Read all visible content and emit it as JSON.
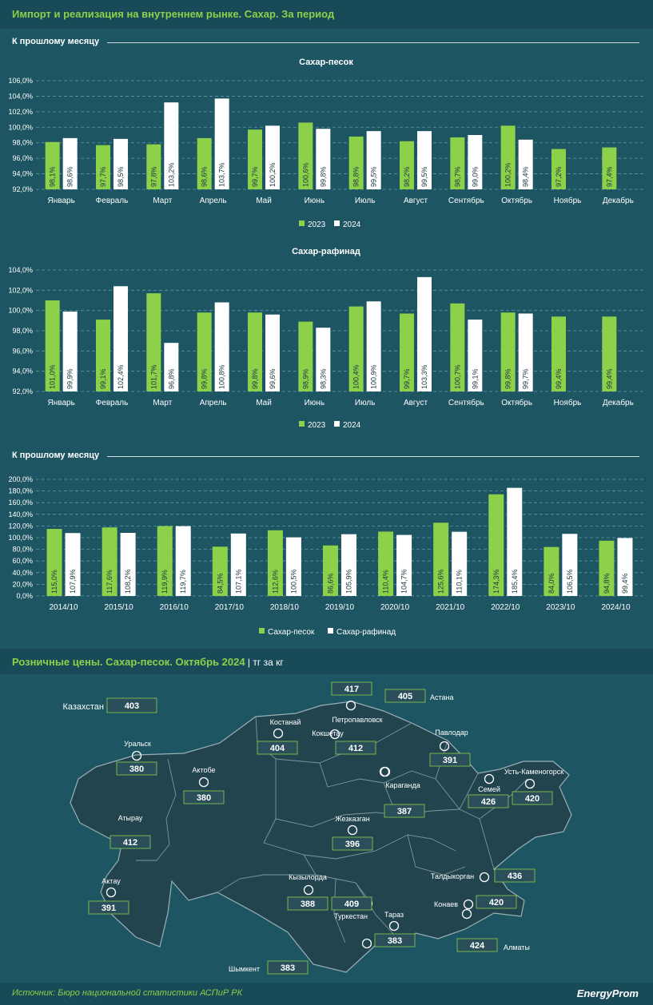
{
  "title": "Импорт и реализация на внутреннем рынке. Сахар. За период",
  "section1": "К прошлому месяцу",
  "section2": "К прошлому месяцу",
  "map_title": "Розничные цены. Сахар-песок. Октябрь 2024",
  "map_sep": " | ",
  "map_unit": "тг за кг",
  "source": "Источник: Бюро национальной статистики АСПиР РК",
  "logo": "EnergyProm",
  "colors": {
    "green": "#8dd04a",
    "white": "#ffffff",
    "background": "#1d5563",
    "map_land": "#22444f"
  },
  "chart_data": [
    {
      "type": "bar",
      "title": "Сахар-песок",
      "categories": [
        "Январь",
        "Февраль",
        "Март",
        "Апрель",
        "Май",
        "Июнь",
        "Июль",
        "Август",
        "Сентябрь",
        "Октябрь",
        "Ноябрь",
        "Декабрь"
      ],
      "series": [
        {
          "name": "2023",
          "values": [
            98.1,
            97.7,
            97.8,
            98.6,
            99.7,
            100.6,
            98.8,
            98.2,
            98.7,
            100.2,
            97.2,
            97.4
          ],
          "labels": [
            "98,1%",
            "97,7%",
            "97,8%",
            "98,6%",
            "99,7%",
            "100,6%",
            "98,8%",
            "98,2%",
            "98,7%",
            "100,2%",
            "97,2%",
            "97,4%"
          ]
        },
        {
          "name": "2024",
          "values": [
            98.6,
            98.5,
            103.2,
            103.7,
            100.2,
            99.8,
            99.5,
            99.5,
            99.0,
            98.4,
            null,
            null
          ],
          "labels": [
            "98,6%",
            "98,5%",
            "103,2%",
            "103,7%",
            "100,2%",
            "99,8%",
            "99,5%",
            "99,5%",
            "99,0%",
            "98,4%",
            "",
            ""
          ]
        }
      ],
      "ylim": [
        92,
        106
      ],
      "yticks": [
        "92,0%",
        "94,0%",
        "96,0%",
        "98,0%",
        "100,0%",
        "102,0%",
        "104,0%",
        "106,0%"
      ],
      "grid": true,
      "legend": "bottom"
    },
    {
      "type": "bar",
      "title": "Сахар-рафинад",
      "categories": [
        "Январь",
        "Февраль",
        "Март",
        "Апрель",
        "Май",
        "Июнь",
        "Июль",
        "Август",
        "Сентябрь",
        "Октябрь",
        "Ноябрь",
        "Декабрь"
      ],
      "series": [
        {
          "name": "2023",
          "values": [
            101.0,
            99.1,
            101.7,
            99.8,
            99.8,
            98.9,
            100.4,
            99.7,
            100.7,
            99.8,
            99.4,
            99.4
          ],
          "labels": [
            "101,0%",
            "99,1%",
            "101,7%",
            "99,8%",
            "99,8%",
            "98,9%",
            "100,4%",
            "99,7%",
            "100,7%",
            "99,8%",
            "99,4%",
            "99,4%"
          ]
        },
        {
          "name": "2024",
          "values": [
            99.9,
            102.4,
            96.8,
            100.8,
            99.6,
            98.3,
            100.9,
            103.3,
            99.1,
            99.7,
            null,
            null
          ],
          "labels": [
            "99,9%",
            "102,4%",
            "96,8%",
            "100,8%",
            "99,6%",
            "98,3%",
            "100,9%",
            "103,3%",
            "99,1%",
            "99,7%",
            "",
            ""
          ]
        }
      ],
      "ylim": [
        92,
        104
      ],
      "yticks": [
        "92,0%",
        "94,0%",
        "96,0%",
        "98,0%",
        "100,0%",
        "102,0%",
        "104,0%"
      ],
      "grid": true,
      "legend": "bottom"
    },
    {
      "type": "bar",
      "title": "",
      "categories": [
        "2014/10",
        "2015/10",
        "2016/10",
        "2017/10",
        "2018/10",
        "2019/10",
        "2020/10",
        "2021/10",
        "2022/10",
        "2023/10",
        "2024/10"
      ],
      "series": [
        {
          "name": "Сахар-песок",
          "values": [
            115.0,
            117.6,
            119.9,
            84.5,
            112.6,
            86.6,
            110.4,
            125.6,
            174.3,
            84.0,
            94.8
          ],
          "labels": [
            "115,0%",
            "117,6%",
            "119,9%",
            "84,5%",
            "112,6%",
            "86,6%",
            "110,4%",
            "125,6%",
            "174,3%",
            "84,0%",
            "94,8%"
          ]
        },
        {
          "name": "Сахар-рафинад",
          "values": [
            107.9,
            108.2,
            119.7,
            107.1,
            100.5,
            105.9,
            104.7,
            110.1,
            185.4,
            106.5,
            99.4
          ],
          "labels": [
            "107,9%",
            "108,2%",
            "119,7%",
            "107,1%",
            "100,5%",
            "105,9%",
            "104,7%",
            "110,1%",
            "185,4%",
            "106,5%",
            "99,4%"
          ]
        }
      ],
      "ylim": [
        0,
        200
      ],
      "yticks": [
        "0,0%",
        "20,0%",
        "40,0%",
        "60,0%",
        "80,0%",
        "100,0%",
        "120,0%",
        "140,0%",
        "160,0%",
        "180,0%",
        "200,0%"
      ],
      "grid": true,
      "legend": "bottom"
    }
  ],
  "map": {
    "country": {
      "name": "Казахстан",
      "price": "403"
    },
    "regions": [
      {
        "name": "Петропавловск",
        "price": "417"
      },
      {
        "name": "Астана",
        "price": "405"
      },
      {
        "name": "Костанай",
        "price": "404"
      },
      {
        "name": "Кокшетау",
        "price": "412"
      },
      {
        "name": "Павлодар",
        "price": "391"
      },
      {
        "name": "Уральск",
        "price": "380"
      },
      {
        "name": "Актобе",
        "price": "380"
      },
      {
        "name": "Караганда",
        "price": "387"
      },
      {
        "name": "Семей",
        "price": "426"
      },
      {
        "name": "Усть-Каменогорск",
        "price": "420"
      },
      {
        "name": "Атырау",
        "price": "412"
      },
      {
        "name": "Жезказган",
        "price": "396"
      },
      {
        "name": "Актау",
        "price": "391"
      },
      {
        "name": "Кызылорда",
        "price": "388"
      },
      {
        "name": "Туркестан",
        "price": "409"
      },
      {
        "name": "Талдыкорган",
        "price": "436"
      },
      {
        "name": "Конаев",
        "price": "420"
      },
      {
        "name": "Тараз",
        "price": "383"
      },
      {
        "name": "Алматы",
        "price": "424"
      },
      {
        "name": "Шымкент",
        "price": "383"
      }
    ]
  }
}
